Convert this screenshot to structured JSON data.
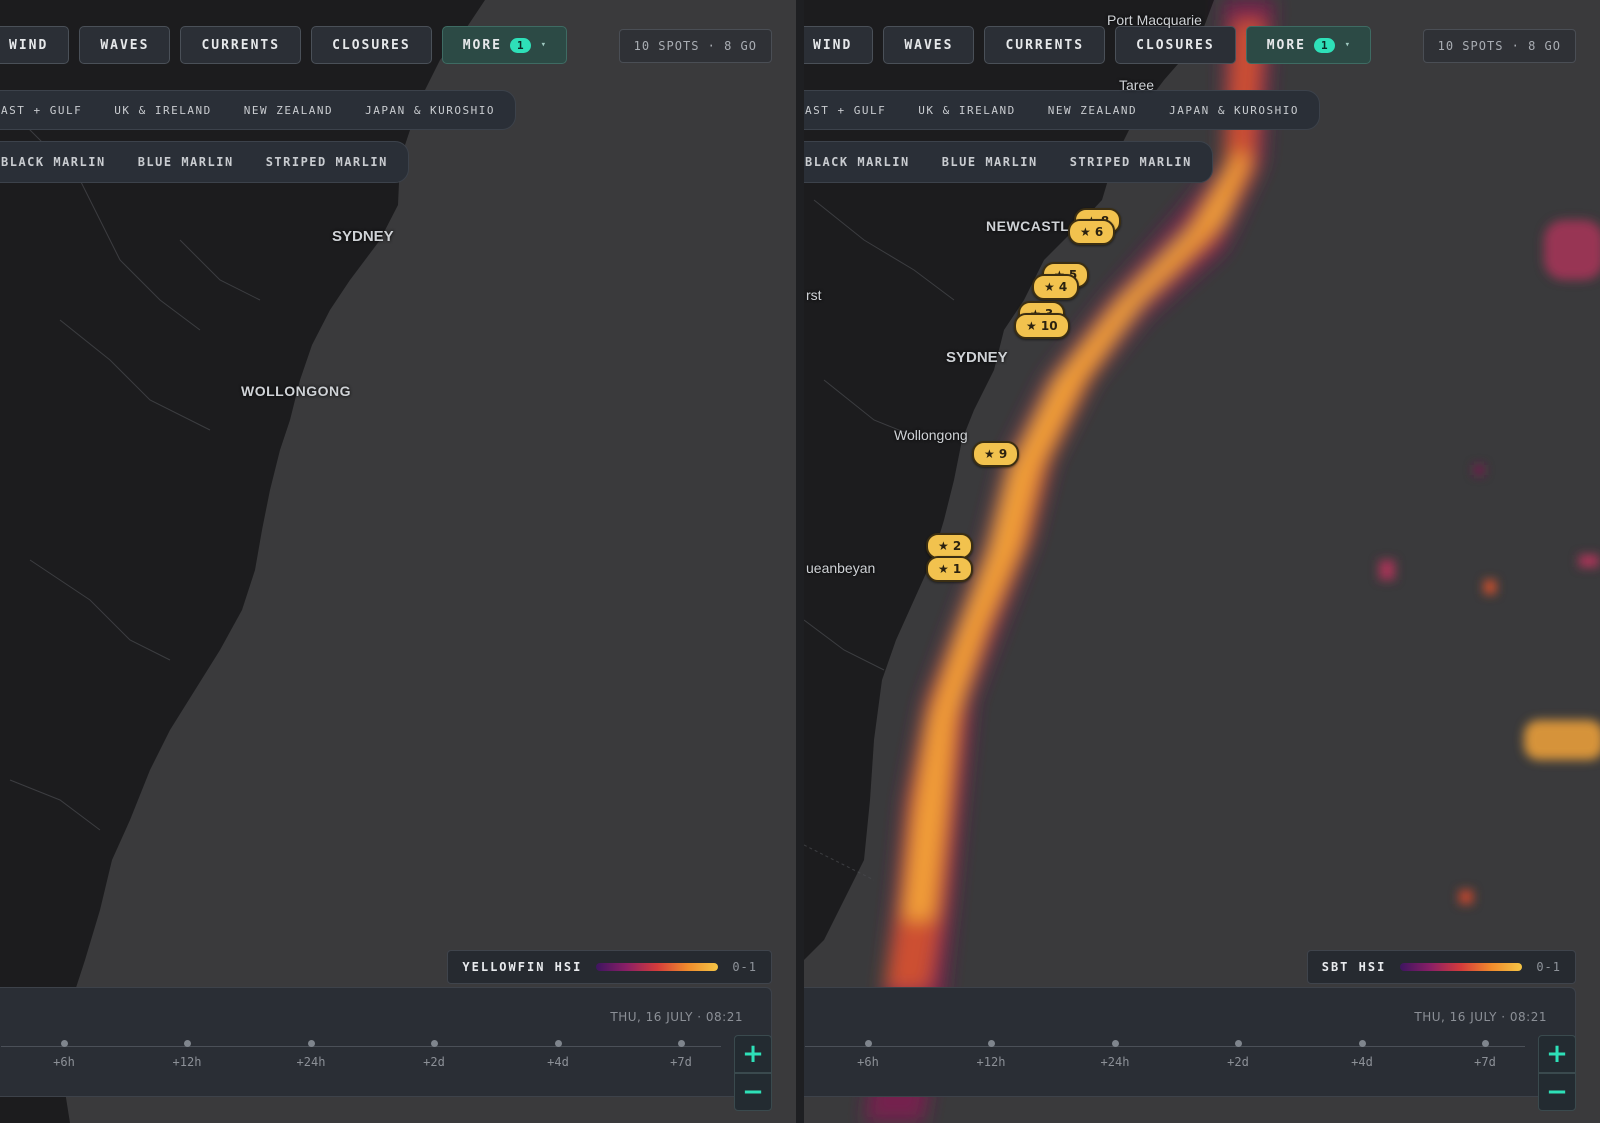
{
  "panels": [
    {
      "toolbar": {
        "wind": "WIND",
        "waves": "WAVES",
        "currents": "CURRENTS",
        "closures": "CLOSURES",
        "more": "MORE",
        "more_badge": "1",
        "more_caret": "▾"
      },
      "spots_summary": "10 SPOTS · 8 GO",
      "regions": [
        "AST + GULF",
        "UK & IRELAND",
        "NEW ZEALAND",
        "JAPAN & KUROSHIO"
      ],
      "species": [
        "BLACK MARLIN",
        "BLUE MARLIN",
        "STRIPED MARLIN"
      ],
      "cities": [
        "SYDNEY",
        "WOLLONGONG"
      ],
      "legend": {
        "label": "YELLOWFIN HSI",
        "range": "0-1",
        "gradient": [
          "#3e1560",
          "#8a1f66",
          "#d43b3b",
          "#f08b2c",
          "#f5c545"
        ]
      },
      "timeline": {
        "date": "THU, 16 JULY · 08:21",
        "ticks": [
          "+6h",
          "+12h",
          "+24h",
          "+2d",
          "+4d",
          "+7d"
        ]
      },
      "zoom": {
        "in": "+",
        "out": "−"
      }
    },
    {
      "toolbar": {
        "wind": "WIND",
        "waves": "WAVES",
        "currents": "CURRENTS",
        "closures": "CLOSURES",
        "more": "MORE",
        "more_badge": "1",
        "more_caret": "▾"
      },
      "spots_summary": "10 SPOTS · 8 GO",
      "regions": [
        "AST + GULF",
        "UK & IRELAND",
        "NEW ZEALAND",
        "JAPAN & KUROSHIO"
      ],
      "species": [
        "BLACK MARLIN",
        "BLUE MARLIN",
        "STRIPED MARLIN"
      ],
      "cities": [
        "Port Macquarie",
        "Taree",
        "NEWCASTL",
        "rst",
        "SYDNEY",
        "Wollongong",
        "ueanbeyan"
      ],
      "markers": [
        "★ 8",
        "★ 6",
        "★ 5",
        "★ 4",
        "★ 3",
        "★ 10",
        "★ 9",
        "★ 2",
        "★ 1"
      ],
      "legend": {
        "label": "SBT HSI",
        "range": "0-1",
        "gradient": [
          "#3e1560",
          "#8a1f66",
          "#d43b3b",
          "#f08b2c",
          "#f5c545"
        ]
      },
      "timeline": {
        "date": "THU, 16 JULY · 08:21",
        "ticks": [
          "+6h",
          "+12h",
          "+24h",
          "+2d",
          "+4d",
          "+7d"
        ]
      },
      "zoom": {
        "in": "+",
        "out": "−"
      }
    }
  ],
  "colors": {
    "accent": "#2ee0b8",
    "marker": "#f2c24e",
    "land": "#1c1c1e",
    "ocean": "#3a3a3c"
  }
}
